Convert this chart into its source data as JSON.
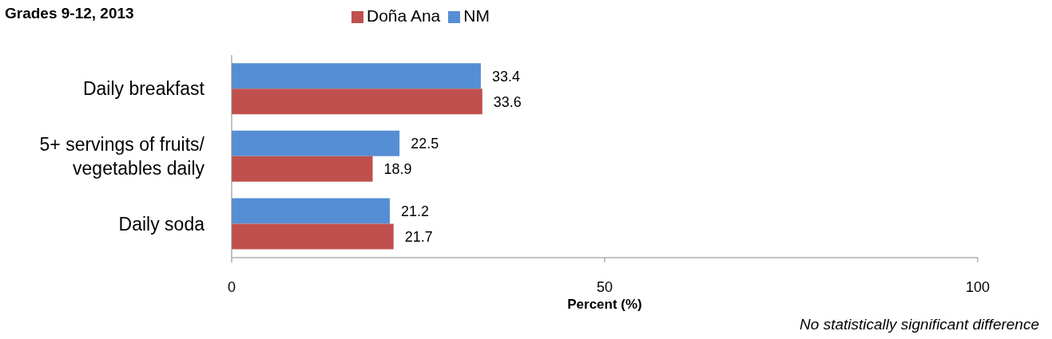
{
  "chart_data": {
    "type": "bar",
    "orientation": "horizontal",
    "title": "Grades 9-12, 2013",
    "xlabel": "Percent (%)",
    "categories": [
      "Daily breakfast",
      "5+ servings of fruits/ vegetables daily",
      "Daily soda"
    ],
    "series": [
      {
        "name": "NM",
        "color": "#558ed5",
        "values": [
          33.4,
          22.5,
          21.2
        ]
      },
      {
        "name": "Doña Ana",
        "color": "#c0504d",
        "values": [
          33.6,
          18.9,
          21.7
        ]
      }
    ],
    "xlim": [
      0,
      100
    ],
    "xticks": [
      0,
      50,
      100
    ],
    "data_labels": true,
    "legend": "top",
    "grid": false,
    "annotations": [
      "No statistically significant difference"
    ]
  }
}
